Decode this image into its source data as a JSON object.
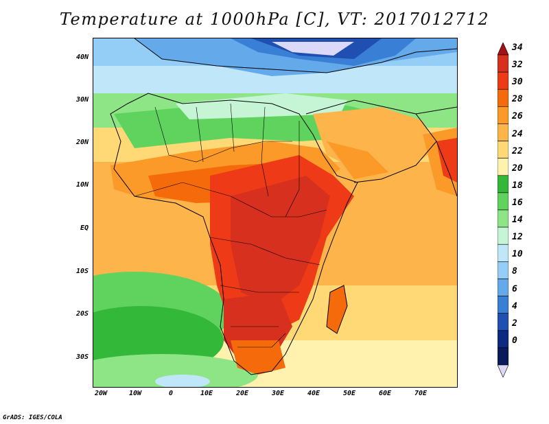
{
  "title": "Temperature at 1000hPa [C], VT: 2017012712",
  "credit": "GrADS: IGES/COLA",
  "map": {
    "y_axis_labels": [
      "40N",
      "30N",
      "20N",
      "10N",
      "EQ",
      "10S",
      "20S",
      "30S"
    ],
    "x_axis_labels": [
      "20W",
      "10W",
      "0",
      "10E",
      "20E",
      "30E",
      "40E",
      "50E",
      "60E",
      "70E"
    ]
  },
  "colorbar": {
    "labels": [
      "34",
      "32",
      "30",
      "28",
      "26",
      "24",
      "22",
      "20",
      "18",
      "16",
      "14",
      "12",
      "10",
      "8",
      "6",
      "4",
      "2",
      "0"
    ],
    "colors": [
      "#a50f15",
      "#d7301f",
      "#ee3a16",
      "#f56b0c",
      "#fb9a29",
      "#fdb44b",
      "#fed975",
      "#fff2ae",
      "#33b83a",
      "#5fd35e",
      "#8ee585",
      "#c6f5d6",
      "#bfe7f9",
      "#94cdf5",
      "#64aaea",
      "#3a7fd6",
      "#1f4fb0",
      "#0c2a82",
      "#0a1a5c",
      "#dcd8f8"
    ]
  }
}
